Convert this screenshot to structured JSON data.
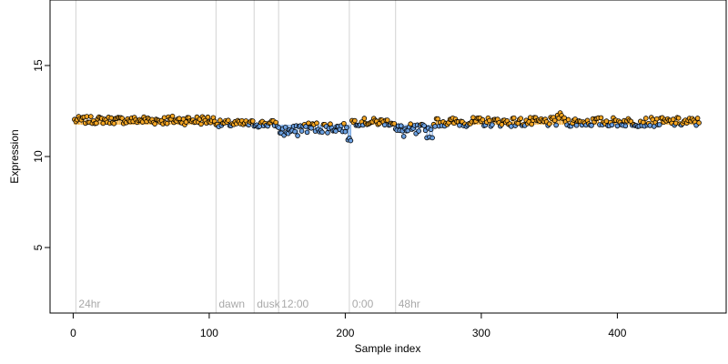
{
  "chart_data": {
    "type": "scatter",
    "xlabel": "Sample index",
    "ylabel": "Expression",
    "xlim": [
      -17,
      480
    ],
    "ylim": [
      1.4,
      18.6
    ],
    "x_ticks": [
      "0",
      "100",
      "200",
      "300",
      "400"
    ],
    "y_ticks": [
      "5",
      "10",
      "15"
    ],
    "grid": false,
    "baseline": 11.75,
    "colors": {
      "above_baseline_fill": "#F5A623",
      "below_baseline_fill": "#6A9FE0",
      "point_edge": "#000000",
      "phase_line": "#D3D3D3",
      "phase_text": "#A9A9A9"
    },
    "phase_markers": [
      {
        "x": 2,
        "label": "24hr"
      },
      {
        "x": 105,
        "label": "dawn"
      },
      {
        "x": 133,
        "label": "dusk"
      },
      {
        "x": 151,
        "label": "12:00"
      },
      {
        "x": 203,
        "label": "0:00"
      },
      {
        "x": 237,
        "label": "48hr"
      }
    ],
    "series_segments": [
      {
        "x_start": 1,
        "x_end": 50,
        "mean": 12.0,
        "noise": 0.2
      },
      {
        "x_start": 51,
        "x_end": 105,
        "mean": 12.0,
        "noise": 0.25
      },
      {
        "x_start": 106,
        "x_end": 150,
        "mean": 11.8,
        "noise": 0.2
      },
      {
        "x_start": 151,
        "x_end": 165,
        "mean": 11.4,
        "noise": 0.3
      },
      {
        "x_start": 166,
        "x_end": 200,
        "mean": 11.6,
        "noise": 0.3
      },
      {
        "x_start": 201,
        "x_end": 204,
        "mean": 11.2,
        "noise": 0.4
      },
      {
        "x_start": 205,
        "x_end": 236,
        "mean": 11.9,
        "noise": 0.2
      },
      {
        "x_start": 237,
        "x_end": 265,
        "mean": 11.4,
        "noise": 0.4
      },
      {
        "x_start": 266,
        "x_end": 355,
        "mean": 11.9,
        "noise": 0.25
      },
      {
        "x_start": 356,
        "x_end": 360,
        "mean": 12.2,
        "noise": 0.2
      },
      {
        "x_start": 361,
        "x_end": 460,
        "mean": 11.9,
        "noise": 0.25
      }
    ]
  }
}
